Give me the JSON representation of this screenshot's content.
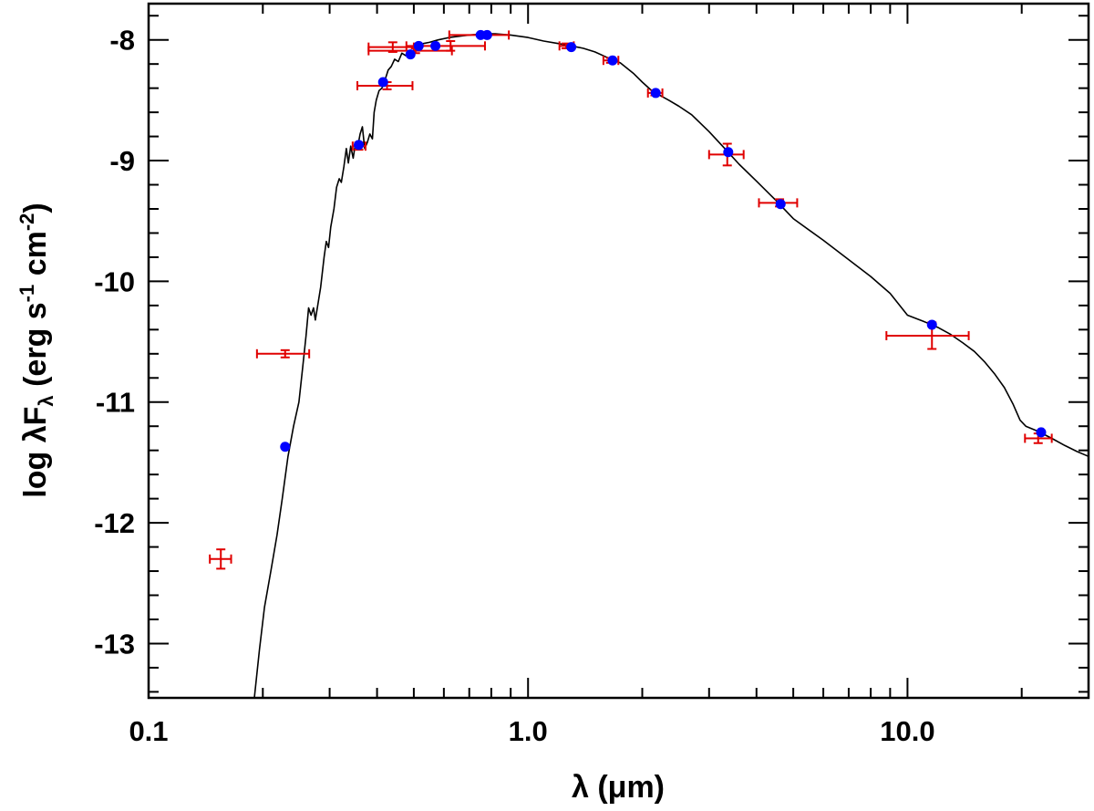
{
  "chart_data": {
    "type": "scatter",
    "title": "",
    "xlabel": "λ (μm)",
    "ylabel_parts": {
      "prefix": "log ",
      "lambda": "λ",
      "flux": "F",
      "sub": "λ",
      "units_a": " (erg s",
      "exp1": "-1",
      "units_b": " cm",
      "exp2": "-2",
      "close": ")"
    },
    "xscale": "log",
    "xlim": [
      0.1,
      30
    ],
    "ylim": [
      -13.45,
      -7.7
    ],
    "x_ticks": [
      {
        "value": 0.1,
        "label": "0.1"
      },
      {
        "value": 1.0,
        "label": "1.0"
      },
      {
        "value": 10.0,
        "label": "10.0"
      }
    ],
    "y_ticks": [
      {
        "value": -8,
        "label": "-8"
      },
      {
        "value": -9,
        "label": "-9"
      },
      {
        "value": -10,
        "label": "-10"
      },
      {
        "value": -11,
        "label": "-11"
      },
      {
        "value": -12,
        "label": "-12"
      },
      {
        "value": -13,
        "label": "-13"
      }
    ],
    "colors": {
      "observed": "#e00000",
      "synthetic": "#0000ff",
      "model": "#000000"
    },
    "observed": [
      {
        "x": 0.155,
        "y": -12.3,
        "xerr": [
          0.145,
          0.165
        ],
        "yerr": 0.08
      },
      {
        "x": 0.229,
        "y": -10.6,
        "xerr": [
          0.193,
          0.265
        ],
        "yerr": 0.03
      },
      {
        "x": 0.358,
        "y": -8.88,
        "xerr": [
          0.345,
          0.373
        ],
        "yerr": 0.03
      },
      {
        "x": 0.425,
        "y": -8.38,
        "xerr": [
          0.355,
          0.496
        ],
        "yerr": 0.03
      },
      {
        "x": 0.44,
        "y": -8.06,
        "xerr": [
          0.38,
          0.5
        ],
        "yerr": 0.04
      },
      {
        "x": 0.505,
        "y": -8.09,
        "xerr": [
          0.38,
          0.63
        ],
        "yerr": 0.02
      },
      {
        "x": 0.625,
        "y": -8.05,
        "xerr": [
          0.478,
          0.77
        ],
        "yerr": 0.04
      },
      {
        "x": 0.77,
        "y": -7.96,
        "xerr": [
          0.62,
          0.89
        ],
        "yerr": 0.02
      },
      {
        "x": 1.26,
        "y": -8.05,
        "xerr": [
          1.21,
          1.32
        ],
        "yerr": 0.02
      },
      {
        "x": 1.65,
        "y": -8.17,
        "xerr": [
          1.58,
          1.73
        ],
        "yerr": 0.02
      },
      {
        "x": 2.16,
        "y": -8.44,
        "xerr": [
          2.07,
          2.26
        ],
        "yerr": 0.02
      },
      {
        "x": 3.35,
        "y": -8.95,
        "xerr": [
          3.0,
          3.7
        ],
        "yerr": 0.09
      },
      {
        "x": 4.6,
        "y": -9.35,
        "xerr": [
          4.06,
          5.12
        ],
        "yerr": 0.03
      },
      {
        "x": 11.6,
        "y": -10.45,
        "xerr": [
          8.8,
          14.5
        ],
        "yerr": 0.11
      },
      {
        "x": 22.1,
        "y": -11.3,
        "xerr": [
          20.4,
          24.0
        ],
        "yerr": 0.04
      }
    ],
    "synthetic": [
      {
        "x": 0.229,
        "y": -11.37
      },
      {
        "x": 0.358,
        "y": -8.87
      },
      {
        "x": 0.415,
        "y": -8.35
      },
      {
        "x": 0.49,
        "y": -8.12
      },
      {
        "x": 0.515,
        "y": -8.05
      },
      {
        "x": 0.57,
        "y": -8.05
      },
      {
        "x": 0.75,
        "y": -7.96
      },
      {
        "x": 0.78,
        "y": -7.96
      },
      {
        "x": 1.3,
        "y": -8.06
      },
      {
        "x": 1.67,
        "y": -8.17
      },
      {
        "x": 2.17,
        "y": -8.44
      },
      {
        "x": 3.37,
        "y": -8.93
      },
      {
        "x": 4.63,
        "y": -9.36
      },
      {
        "x": 11.6,
        "y": -10.36
      },
      {
        "x": 22.5,
        "y": -11.25
      }
    ],
    "model_curve": [
      [
        0.19,
        -13.45
      ],
      [
        0.196,
        -13.05
      ],
      [
        0.202,
        -12.7
      ],
      [
        0.21,
        -12.4
      ],
      [
        0.218,
        -12.1
      ],
      [
        0.225,
        -11.8
      ],
      [
        0.233,
        -11.45
      ],
      [
        0.241,
        -11.2
      ],
      [
        0.249,
        -11.0
      ],
      [
        0.255,
        -10.7
      ],
      [
        0.26,
        -10.45
      ],
      [
        0.264,
        -10.22
      ],
      [
        0.268,
        -10.28
      ],
      [
        0.272,
        -10.22
      ],
      [
        0.275,
        -10.32
      ],
      [
        0.279,
        -10.2
      ],
      [
        0.284,
        -10.05
      ],
      [
        0.29,
        -9.8
      ],
      [
        0.294,
        -9.67
      ],
      [
        0.298,
        -9.72
      ],
      [
        0.302,
        -9.55
      ],
      [
        0.308,
        -9.4
      ],
      [
        0.313,
        -9.22
      ],
      [
        0.318,
        -9.15
      ],
      [
        0.322,
        -9.18
      ],
      [
        0.327,
        -9.05
      ],
      [
        0.332,
        -8.9
      ],
      [
        0.336,
        -9.02
      ],
      [
        0.341,
        -8.88
      ],
      [
        0.346,
        -8.98
      ],
      [
        0.351,
        -8.85
      ],
      [
        0.356,
        -8.88
      ],
      [
        0.361,
        -8.78
      ],
      [
        0.366,
        -8.72
      ],
      [
        0.371,
        -8.9
      ],
      [
        0.377,
        -8.85
      ],
      [
        0.383,
        -8.78
      ],
      [
        0.389,
        -8.82
      ],
      [
        0.393,
        -8.6
      ],
      [
        0.398,
        -8.5
      ],
      [
        0.405,
        -8.42
      ],
      [
        0.412,
        -8.4
      ],
      [
        0.42,
        -8.33
      ],
      [
        0.428,
        -8.25
      ],
      [
        0.436,
        -8.22
      ],
      [
        0.445,
        -8.16
      ],
      [
        0.455,
        -8.18
      ],
      [
        0.465,
        -8.11
      ],
      [
        0.476,
        -8.13
      ],
      [
        0.487,
        -8.09
      ],
      [
        0.498,
        -8.12
      ],
      [
        0.51,
        -8.07
      ],
      [
        0.53,
        -8.03
      ],
      [
        0.55,
        -8.02
      ],
      [
        0.58,
        -8.0
      ],
      [
        0.62,
        -7.98
      ],
      [
        0.66,
        -7.97
      ],
      [
        0.7,
        -7.96
      ],
      [
        0.76,
        -7.95
      ],
      [
        0.82,
        -7.95
      ],
      [
        0.9,
        -7.96
      ],
      [
        1.0,
        -7.98
      ],
      [
        1.1,
        -8.01
      ],
      [
        1.2,
        -8.03
      ],
      [
        1.3,
        -8.05
      ],
      [
        1.4,
        -8.07
      ],
      [
        1.5,
        -8.1
      ],
      [
        1.6,
        -8.14
      ],
      [
        1.75,
        -8.19
      ],
      [
        1.9,
        -8.28
      ],
      [
        2.0,
        -8.35
      ],
      [
        2.1,
        -8.41
      ],
      [
        2.2,
        -8.45
      ],
      [
        2.35,
        -8.5
      ],
      [
        2.5,
        -8.55
      ],
      [
        2.7,
        -8.62
      ],
      [
        3.0,
        -8.76
      ],
      [
        3.3,
        -8.9
      ],
      [
        3.6,
        -9.03
      ],
      [
        4.0,
        -9.17
      ],
      [
        4.5,
        -9.33
      ],
      [
        5.0,
        -9.48
      ],
      [
        6.0,
        -9.66
      ],
      [
        7.0,
        -9.82
      ],
      [
        8.0,
        -9.96
      ],
      [
        9.0,
        -10.1
      ],
      [
        10.0,
        -10.28
      ],
      [
        11.0,
        -10.33
      ],
      [
        12.0,
        -10.38
      ],
      [
        13.0,
        -10.44
      ],
      [
        14.0,
        -10.51
      ],
      [
        15.0,
        -10.58
      ],
      [
        16.0,
        -10.67
      ],
      [
        17.0,
        -10.77
      ],
      [
        18.0,
        -10.88
      ],
      [
        19.0,
        -11.02
      ],
      [
        19.8,
        -11.15
      ],
      [
        20.5,
        -11.2
      ],
      [
        22.0,
        -11.24
      ],
      [
        24.0,
        -11.3
      ],
      [
        26.0,
        -11.36
      ],
      [
        28.0,
        -11.41
      ],
      [
        30.0,
        -11.45
      ]
    ]
  }
}
